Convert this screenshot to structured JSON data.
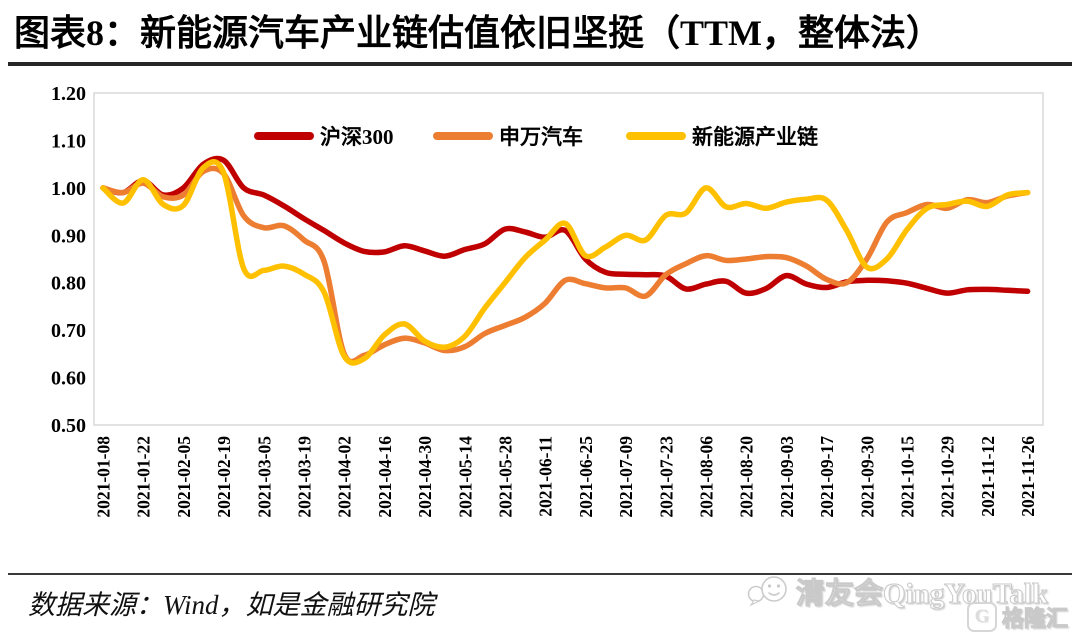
{
  "title": "图表8：新能源汽车产业链估值依旧坚挺（TTM，整体法）",
  "source_note": "数据来源：Wind，如是金融研究院",
  "watermark": {
    "qingyou": "清友会QingYouTalk",
    "gelonghui": "格隆汇",
    "gelonghui_icon_letter": "G"
  },
  "chart_data": {
    "type": "line",
    "title": "",
    "xlabel": "",
    "ylabel": "",
    "ylim": [
      0.5,
      1.2
    ],
    "y_ticks": [
      "1.20",
      "1.10",
      "1.00",
      "0.90",
      "0.80",
      "0.70",
      "0.60",
      "0.50"
    ],
    "grid": false,
    "legend_position": "top-center-inside",
    "x": [
      "2021-01-08",
      "2021-01-15",
      "2021-01-22",
      "2021-01-29",
      "2021-02-05",
      "2021-02-12",
      "2021-02-19",
      "2021-02-26",
      "2021-03-05",
      "2021-03-12",
      "2021-03-19",
      "2021-03-26",
      "2021-04-02",
      "2021-04-09",
      "2021-04-16",
      "2021-04-23",
      "2021-04-30",
      "2021-05-07",
      "2021-05-14",
      "2021-05-21",
      "2021-05-28",
      "2021-06-04",
      "2021-06-11",
      "2021-06-18",
      "2021-06-25",
      "2021-07-02",
      "2021-07-09",
      "2021-07-16",
      "2021-07-23",
      "2021-07-30",
      "2021-08-06",
      "2021-08-13",
      "2021-08-20",
      "2021-08-27",
      "2021-09-03",
      "2021-09-10",
      "2021-09-17",
      "2021-09-24",
      "2021-09-30",
      "2021-10-08",
      "2021-10-15",
      "2021-10-22",
      "2021-10-29",
      "2021-11-05",
      "2021-11-12",
      "2021-11-19",
      "2021-11-26"
    ],
    "x_tick_labels": [
      "2021-01-08",
      "2021-01-22",
      "2021-02-05",
      "2021-02-19",
      "2021-03-05",
      "2021-03-19",
      "2021-04-02",
      "2021-04-16",
      "2021-04-30",
      "2021-05-14",
      "2021-05-28",
      "2021-06-11",
      "2021-06-25",
      "2021-07-09",
      "2021-07-23",
      "2021-08-06",
      "2021-08-20",
      "2021-09-03",
      "2021-09-17",
      "2021-09-30",
      "2021-10-15",
      "2021-10-29",
      "2021-11-12",
      "2021-11-26"
    ],
    "series": [
      {
        "name": "沪深300",
        "color": "#C00000",
        "values": [
          1.0,
          0.99,
          1.015,
          0.985,
          1.0,
          1.05,
          1.058,
          1.0,
          0.985,
          0.962,
          0.935,
          0.91,
          0.884,
          0.866,
          0.865,
          0.878,
          0.867,
          0.856,
          0.87,
          0.882,
          0.913,
          0.907,
          0.896,
          0.91,
          0.85,
          0.822,
          0.818,
          0.817,
          0.814,
          0.787,
          0.797,
          0.803,
          0.778,
          0.788,
          0.815,
          0.797,
          0.79,
          0.802,
          0.805,
          0.804,
          0.799,
          0.788,
          0.778,
          0.785,
          0.786,
          0.784,
          0.782
        ]
      },
      {
        "name": "申万汽车",
        "color": "#ED7D31",
        "values": [
          1.0,
          0.99,
          1.01,
          0.981,
          0.985,
          1.035,
          1.03,
          0.941,
          0.916,
          0.92,
          0.89,
          0.845,
          0.65,
          0.647,
          0.669,
          0.683,
          0.673,
          0.657,
          0.665,
          0.693,
          0.71,
          0.727,
          0.757,
          0.805,
          0.798,
          0.789,
          0.789,
          0.772,
          0.817,
          0.84,
          0.857,
          0.847,
          0.85,
          0.855,
          0.853,
          0.835,
          0.807,
          0.8,
          0.85,
          0.928,
          0.948,
          0.965,
          0.957,
          0.975,
          0.969,
          0.983,
          0.99
        ]
      },
      {
        "name": "新能源产业链",
        "color": "#FFC000",
        "values": [
          1.0,
          0.968,
          1.017,
          0.965,
          0.963,
          1.043,
          1.032,
          0.83,
          0.826,
          0.835,
          0.818,
          0.78,
          0.645,
          0.64,
          0.69,
          0.713,
          0.677,
          0.664,
          0.687,
          0.747,
          0.8,
          0.853,
          0.89,
          0.925,
          0.857,
          0.875,
          0.9,
          0.89,
          0.942,
          0.947,
          1.0,
          0.96,
          0.967,
          0.957,
          0.97,
          0.976,
          0.974,
          0.91,
          0.833,
          0.85,
          0.912,
          0.957,
          0.965,
          0.972,
          0.961,
          0.985,
          0.99
        ]
      }
    ]
  }
}
